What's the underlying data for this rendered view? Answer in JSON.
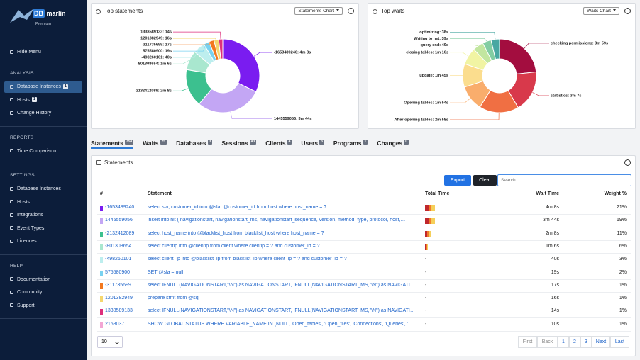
{
  "logo": {
    "prefix": "DB",
    "name": "marlin",
    "edition": "Premium"
  },
  "menu_toggle": "Hide Menu",
  "sections": [
    {
      "title": "ANALYSIS",
      "items": [
        {
          "label": "Database Instances",
          "badge": 1,
          "active": true
        },
        {
          "label": "Hosts",
          "badge": 1
        },
        {
          "label": "Change History"
        }
      ]
    },
    {
      "title": "REPORTS",
      "items": [
        {
          "label": "Time Comparison"
        }
      ]
    },
    {
      "title": "SETTINGS",
      "items": [
        {
          "label": "Database Instances"
        },
        {
          "label": "Hosts"
        },
        {
          "label": "Integrations"
        },
        {
          "label": "Event Types"
        },
        {
          "label": "Licences"
        }
      ]
    },
    {
      "title": "HELP",
      "items": [
        {
          "label": "Documentation"
        },
        {
          "label": "Community"
        },
        {
          "label": "Support"
        }
      ]
    }
  ],
  "charts": [
    {
      "type": "pie",
      "title": "Top statements",
      "button": "Statements Chart",
      "labels": [
        "-1653489240: 4m 8s",
        "1445559056: 3m 44s",
        "-2132412089: 2m 8s",
        "-801308654: 1m 6s",
        "-498260101: 40s",
        "575580900: 19s",
        "-311735699: 17s",
        "1201382949: 16s",
        "1338589133: 14s"
      ],
      "values": [
        248,
        224,
        128,
        66,
        40,
        19,
        17,
        16,
        14
      ],
      "colors": [
        "#7a1cf0",
        "#c3a6f4",
        "#3cc08f",
        "#a9e7cf",
        "#bdeeee",
        "#79d2f0",
        "#f2781f",
        "#f5d76e",
        "#de2f7c"
      ]
    },
    {
      "type": "pie",
      "title": "Top waits",
      "button": "Waits Chart",
      "labels": [
        "checking permissions: 3m 59s",
        "statistics: 3m 7s",
        "After opening tables: 2m 58s",
        "Opening tables: 1m 54s",
        "update: 1m 45s",
        "closing tables: 1m 16s",
        "query end: 49s",
        "Writing to net: 39s",
        "optimizing: 38s"
      ],
      "values": [
        239,
        187,
        178,
        114,
        105,
        76,
        49,
        39,
        38
      ],
      "colors": [
        "#a30d3f",
        "#d8394b",
        "#f06f43",
        "#f9ad6c",
        "#fbdd8e",
        "#f1f4a3",
        "#c2e6a0",
        "#83cda3",
        "#48a7a2"
      ]
    }
  ],
  "tabs": [
    {
      "label": "Statements",
      "count": 358,
      "active": true
    },
    {
      "label": "Waits",
      "count": 25
    },
    {
      "label": "Databases",
      "count": 3
    },
    {
      "label": "Sessions",
      "count": 43
    },
    {
      "label": "Clients",
      "count": 4
    },
    {
      "label": "Users",
      "count": 3
    },
    {
      "label": "Programs",
      "count": 1
    },
    {
      "label": "Changes",
      "count": 0
    }
  ],
  "panel": {
    "title": "Statements",
    "buttons": [
      "Export",
      "Clear"
    ],
    "search_placeholder": "Search",
    "columns": [
      "#",
      "Statement",
      "Total Time",
      "Wait Time",
      "Weight %"
    ],
    "rows": [
      {
        "id": "-1653489240",
        "color": "#7a1cf0",
        "statement": "select sla, customer_id into @sla, @customer_id from host where host_name = ?",
        "wait_time": "4m 8s",
        "weight": "21%"
      },
      {
        "id": "1445559056",
        "color": "#c3a6f4",
        "statement": "insert into hit ( navigationstart, navigationstart_ms, navigationstart_sequence, version, method, type, protocol, host,…",
        "wait_time": "3m 44s",
        "weight": "19%"
      },
      {
        "id": "-2132412089",
        "color": "#3cc08f",
        "statement": "select host_name into @blacklist_host from blacklist_host where host_name = ?",
        "wait_time": "2m 8s",
        "weight": "11%"
      },
      {
        "id": "-801308654",
        "color": "#a9e7cf",
        "statement": "select clientip into @clientip from client where clientip = ? and customer_id = ?",
        "wait_time": "1m 6s",
        "weight": "6%"
      },
      {
        "id": "-498260101",
        "color": "#bdeeee",
        "statement": "select client_ip into @blacklist_ip from blacklist_ip where client_ip = ? and customer_id = ?",
        "total_time": "-",
        "wait_time": "40s",
        "weight": "3%"
      },
      {
        "id": "575580900",
        "color": "#79d2f0",
        "statement": "SET @sla = null",
        "total_time": "-",
        "wait_time": "19s",
        "weight": "2%"
      },
      {
        "id": "-311735699",
        "color": "#f2781f",
        "statement": "select IFNULL(NAVIGATIONSTART,\"\\N\") as NAVIGATIONSTART, IFNULL(NAVIGATIONSTART_MS,\"\\N\") as NAVIGATI…",
        "total_time": "-",
        "wait_time": "17s",
        "weight": "1%"
      },
      {
        "id": "1201382949",
        "color": "#f5d76e",
        "statement": "prepare stmt from @sql",
        "total_time": "-",
        "wait_time": "16s",
        "weight": "1%"
      },
      {
        "id": "1338589133",
        "color": "#de2f7c",
        "statement": "select IFNULL(NAVIGATIONSTART,\"\\N\") as NAVIGATIONSTART, IFNULL(NAVIGATIONSTART_MS,\"\\N\") as NAVIGATI…",
        "total_time": "-",
        "wait_time": "14s",
        "weight": "1%"
      },
      {
        "id": "2168037",
        "color": "#f2a6d4",
        "statement": "SHOW GLOBAL STATUS WHERE VARIABLE_NAME IN (NULL, 'Open_tables', 'Open_files', 'Connections', 'Queries', '…",
        "total_time": "-",
        "wait_time": "10s",
        "weight": "1%"
      }
    ],
    "page_size": 10,
    "pagination": [
      "First",
      "Back",
      1,
      2,
      3,
      "Next",
      "Last"
    ]
  }
}
